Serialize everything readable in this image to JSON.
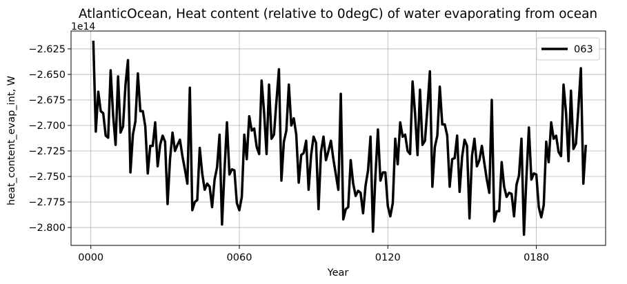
{
  "chart_data": {
    "type": "line",
    "title": "AtlanticOcean, Heat content (relative to 0degC) of water evaporating from ocean",
    "xlabel": "Year",
    "ylabel": "heat_content_evap_int, W",
    "offset_label": "1e14",
    "xlim": [
      -8,
      208
    ],
    "ylim": [
      -2.8175,
      -2.6075
    ],
    "x_ticks": [
      0,
      60,
      120,
      180
    ],
    "x_tick_labels": [
      "0000",
      "0060",
      "0120",
      "0180"
    ],
    "y_ticks": [
      -2.8,
      -2.775,
      -2.75,
      -2.725,
      -2.7,
      -2.675,
      -2.65,
      -2.625
    ],
    "y_tick_labels": [
      "−2.800",
      "−2.775",
      "−2.750",
      "−2.725",
      "−2.700",
      "−2.675",
      "−2.650",
      "−2.625"
    ],
    "grid": true,
    "legend_position": "top-right",
    "series": [
      {
        "name": "063",
        "color": "#000000",
        "x_start": 1,
        "x_step": 1,
        "values": [
          -2.617,
          -2.706,
          -2.667,
          -2.686,
          -2.688,
          -2.71,
          -2.712,
          -2.646,
          -2.69,
          -2.719,
          -2.652,
          -2.707,
          -2.701,
          -2.66,
          -2.636,
          -2.746,
          -2.709,
          -2.696,
          -2.649,
          -2.686,
          -2.686,
          -2.701,
          -2.747,
          -2.72,
          -2.72,
          -2.697,
          -2.74,
          -2.719,
          -2.71,
          -2.716,
          -2.777,
          -2.733,
          -2.707,
          -2.725,
          -2.719,
          -2.714,
          -2.73,
          -2.743,
          -2.757,
          -2.663,
          -2.783,
          -2.775,
          -2.773,
          -2.722,
          -2.747,
          -2.763,
          -2.757,
          -2.76,
          -2.78,
          -2.753,
          -2.741,
          -2.709,
          -2.797,
          -2.744,
          -2.697,
          -2.748,
          -2.743,
          -2.744,
          -2.776,
          -2.783,
          -2.77,
          -2.709,
          -2.733,
          -2.691,
          -2.705,
          -2.703,
          -2.721,
          -2.728,
          -2.656,
          -2.687,
          -2.728,
          -2.66,
          -2.713,
          -2.709,
          -2.676,
          -2.645,
          -2.754,
          -2.716,
          -2.705,
          -2.66,
          -2.7,
          -2.693,
          -2.709,
          -2.756,
          -2.729,
          -2.727,
          -2.715,
          -2.763,
          -2.729,
          -2.711,
          -2.717,
          -2.782,
          -2.726,
          -2.711,
          -2.734,
          -2.725,
          -2.715,
          -2.733,
          -2.748,
          -2.763,
          -2.669,
          -2.792,
          -2.782,
          -2.78,
          -2.734,
          -2.757,
          -2.769,
          -2.764,
          -2.766,
          -2.786,
          -2.759,
          -2.744,
          -2.711,
          -2.804,
          -2.749,
          -2.704,
          -2.754,
          -2.746,
          -2.746,
          -2.779,
          -2.789,
          -2.776,
          -2.713,
          -2.738,
          -2.697,
          -2.711,
          -2.709,
          -2.725,
          -2.728,
          -2.657,
          -2.688,
          -2.729,
          -2.665,
          -2.719,
          -2.715,
          -2.683,
          -2.647,
          -2.76,
          -2.721,
          -2.71,
          -2.662,
          -2.699,
          -2.699,
          -2.71,
          -2.76,
          -2.733,
          -2.732,
          -2.71,
          -2.765,
          -2.731,
          -2.714,
          -2.72,
          -2.791,
          -2.73,
          -2.713,
          -2.74,
          -2.734,
          -2.72,
          -2.737,
          -2.753,
          -2.766,
          -2.675,
          -2.794,
          -2.784,
          -2.784,
          -2.736,
          -2.76,
          -2.77,
          -2.766,
          -2.767,
          -2.789,
          -2.758,
          -2.749,
          -2.713,
          -2.807,
          -2.751,
          -2.702,
          -2.753,
          -2.747,
          -2.748,
          -2.78,
          -2.79,
          -2.778,
          -2.716,
          -2.736,
          -2.697,
          -2.713,
          -2.71,
          -2.726,
          -2.73,
          -2.66,
          -2.687,
          -2.735,
          -2.666,
          -2.723,
          -2.718,
          -2.683,
          -2.644,
          -2.757,
          -2.719
        ]
      }
    ]
  }
}
